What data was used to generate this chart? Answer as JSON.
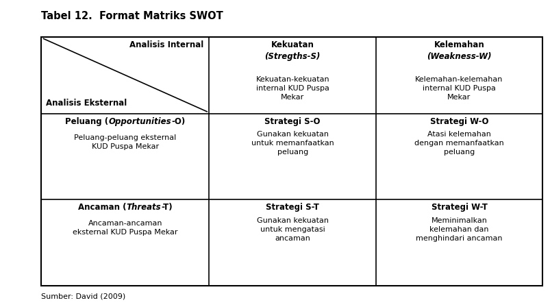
{
  "title": "Tabel 12.  Format Matriks SWOT",
  "subtitle": "Sumber: David (2009)",
  "bg": "#ffffff",
  "border": "#000000",
  "col_splits": [
    0.0,
    0.335,
    0.668,
    1.0
  ],
  "row_splits": [
    0.0,
    0.308,
    0.654,
    1.0
  ],
  "cells": {
    "r0c0_top": "Analisis Internal",
    "r0c0_bot": "Analisis Eksternal",
    "r0c1_h1": "Kekuatan",
    "r0c1_h2": "(Stregths-S)",
    "r0c1_body": "Kekuatan-kekuatan\ninternal KUD Puspa\nMekar",
    "r0c2_h1": "Kelemahan",
    "r0c2_h2": "(Weakness-W)",
    "r0c2_body": "Kelemahan-kelemahan\ninternal KUD Puspa\nMekar",
    "r1c0_h": "Peluang (",
    "r1c0_hi": "Opportunities",
    "r1c0_hs": "-O)",
    "r1c0_body": "Peluang-peluang eksternal\nKUD Puspa Mekar",
    "r1c1_h": "Strategi S-O",
    "r1c1_body": "Gunakan kekuatan\nuntuk memanfaatkan\npeluang",
    "r1c2_h": "Strategi W-O",
    "r1c2_body": "Atasi kelemahan\ndengan memanfaatkan\npeluang",
    "r2c0_h": "Ancaman (",
    "r2c0_hi": "Threats",
    "r2c0_hs": "-T)",
    "r2c0_body": "Ancaman-ancaman\neksternal KUD Puspa Mekar",
    "r2c1_h": "Strategi S-T",
    "r2c1_body": "Gunakan kekuatan\nuntuk mengatasi\nancaman",
    "r2c2_h": "Strategi W-T",
    "r2c2_body": "Meminimalkan\nkelemahan dan\nmenghindari ancaman"
  }
}
